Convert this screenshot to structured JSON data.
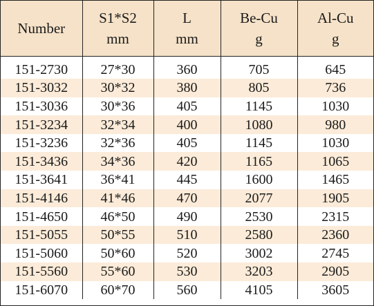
{
  "table": {
    "headers": [
      {
        "line1": "Number",
        "line2": ""
      },
      {
        "line1": "S1*S2",
        "line2": "mm"
      },
      {
        "line1": "L",
        "line2": "mm"
      },
      {
        "line1": "Be-Cu",
        "line2": "g"
      },
      {
        "line1": "Al-Cu",
        "line2": "g"
      }
    ],
    "rows": [
      [
        "151-2730",
        "27*30",
        "360",
        "705",
        "645"
      ],
      [
        "151-3032",
        "30*32",
        "380",
        "805",
        "736"
      ],
      [
        "151-3036",
        "30*36",
        "405",
        "1145",
        "1030"
      ],
      [
        "151-3234",
        "32*34",
        "400",
        "1080",
        "980"
      ],
      [
        "151-3236",
        "32*36",
        "405",
        "1145",
        "1030"
      ],
      [
        "151-3436",
        "34*36",
        "420",
        "1165",
        "1065"
      ],
      [
        "151-3641",
        "36*41",
        "445",
        "1600",
        "1465"
      ],
      [
        "151-4146",
        "41*46",
        "470",
        "2077",
        "1905"
      ],
      [
        "151-4650",
        "46*50",
        "490",
        "2530",
        "2315"
      ],
      [
        "151-5055",
        "50*55",
        "510",
        "2580",
        "2360"
      ],
      [
        "151-5060",
        "50*60",
        "520",
        "3002",
        "2745"
      ],
      [
        "151-5560",
        "55*60",
        "530",
        "3203",
        "2905"
      ],
      [
        "151-6070",
        "60*70",
        "560",
        "4105",
        "3605"
      ]
    ],
    "colors": {
      "header_bg": "#f5e2c8",
      "alt_row_bg": "#fbebd8",
      "border": "#222222"
    }
  }
}
